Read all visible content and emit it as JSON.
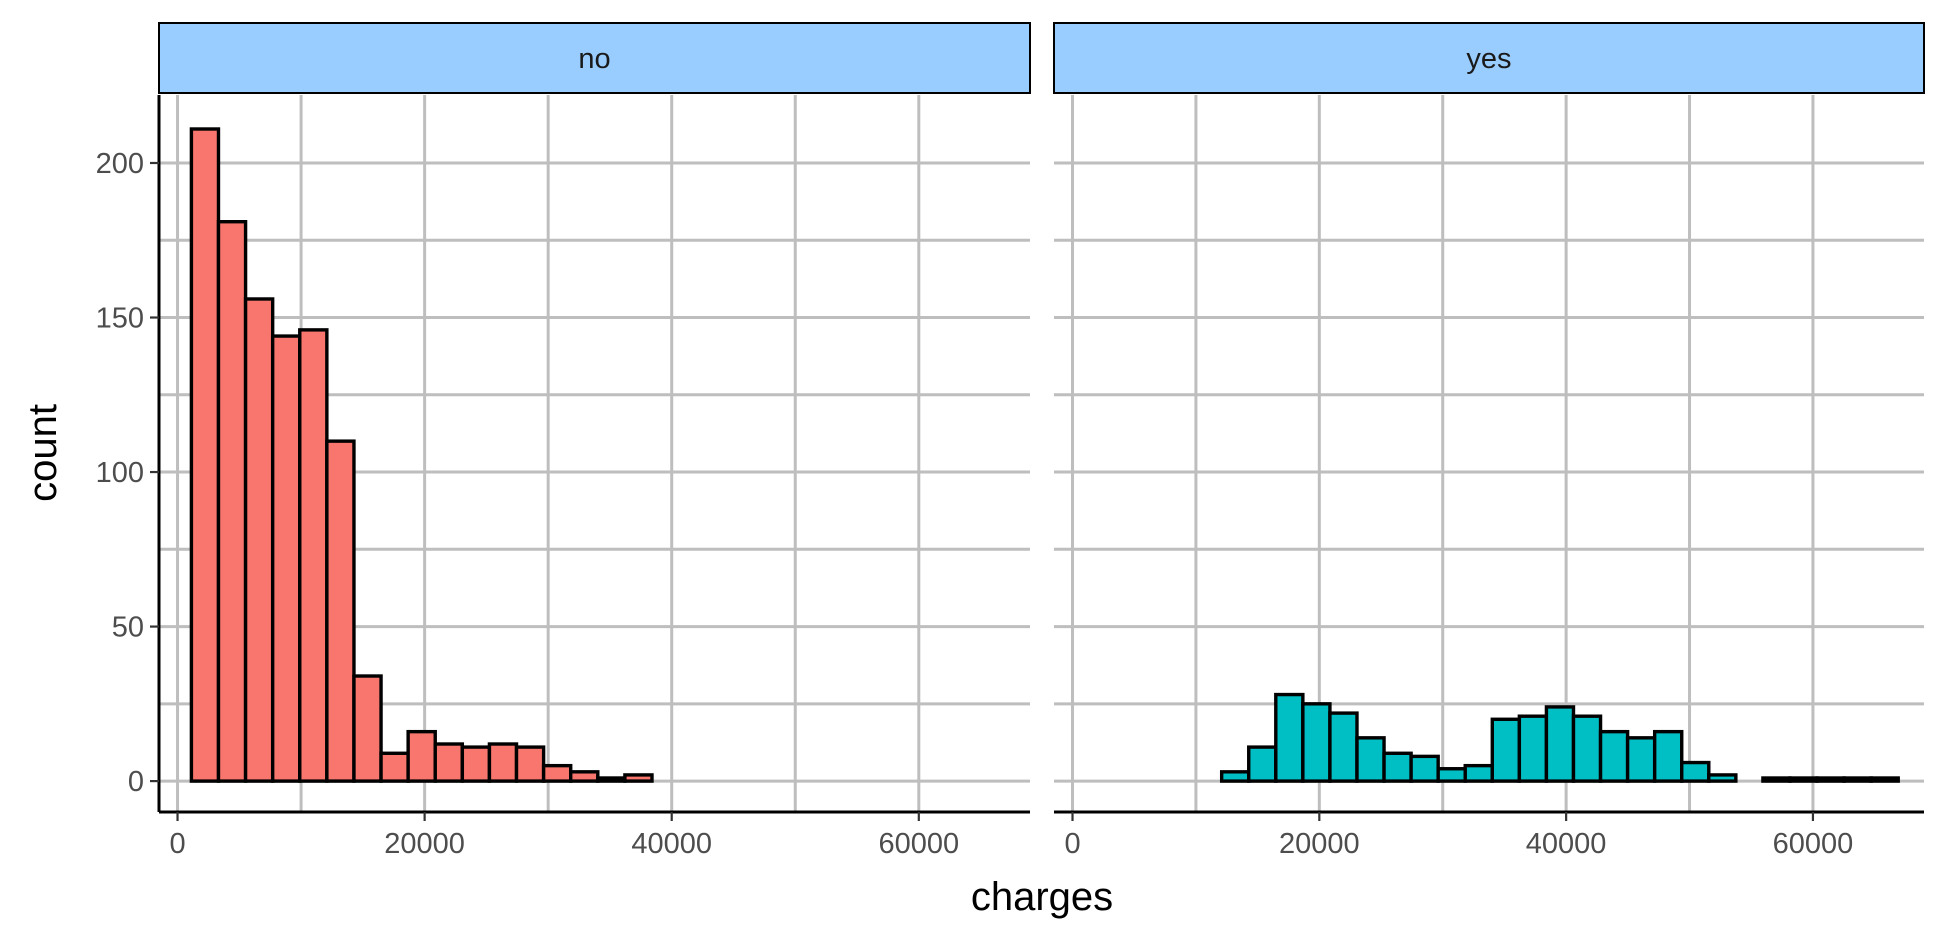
{
  "chart_data": {
    "type": "bar",
    "subtype": "faceted-histogram",
    "xlabel": "charges",
    "ylabel": "count",
    "xlim": [
      -1500,
      69000
    ],
    "ylim": [
      -10,
      222
    ],
    "x_ticks": [
      0,
      20000,
      40000,
      60000
    ],
    "x_tick_labels": [
      "0",
      "20000",
      "40000",
      "60000"
    ],
    "y_ticks": [
      0,
      50,
      100,
      150,
      200
    ],
    "y_tick_labels": [
      "0",
      "50",
      "100",
      "150",
      "200"
    ],
    "y_minor_ticks": [
      25,
      75,
      125,
      175
    ],
    "x_minor_ticks": [
      10000,
      30000,
      50000
    ],
    "grid": true,
    "bin_width": 2193,
    "first_bin_start": 1122,
    "strip_color": "#99ccff",
    "outline_color": "#000000",
    "grid_color": "#bebebe",
    "series": [
      {
        "facet": "no",
        "color": "#f8766d",
        "values": [
          211,
          181,
          156,
          144,
          146,
          110,
          34,
          9,
          16,
          12,
          11,
          12,
          11,
          5,
          3,
          1,
          2,
          0,
          0,
          0,
          0,
          0,
          0,
          0,
          0,
          0,
          0,
          0,
          0,
          0
        ]
      },
      {
        "facet": "yes",
        "color": "#00bfc4",
        "values": [
          0,
          0,
          0,
          0,
          0,
          3,
          11,
          28,
          25,
          22,
          14,
          9,
          8,
          4,
          5,
          20,
          21,
          24,
          21,
          16,
          14,
          16,
          6,
          2,
          0,
          1,
          1,
          1,
          1,
          1
        ]
      }
    ]
  }
}
